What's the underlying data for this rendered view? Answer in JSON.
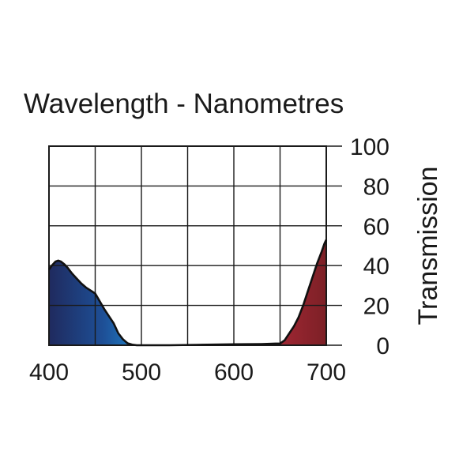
{
  "chart_data": {
    "type": "area",
    "title": "Wavelength - Nanometres",
    "xlabel": "",
    "ylabel": "Transmission",
    "xlim": [
      400,
      700
    ],
    "ylim": [
      0,
      100
    ],
    "x_ticks": [
      "400",
      "500",
      "600",
      "700"
    ],
    "y_ticks": [
      "0",
      "20",
      "40",
      "60",
      "80",
      "100"
    ],
    "grid": true,
    "y_axis_side": "right",
    "series": [
      {
        "x": [
          400,
          403,
          407,
          410,
          413,
          417,
          420,
          425,
          430,
          435,
          440,
          445,
          450,
          455,
          460,
          465,
          470,
          475,
          480,
          485,
          490,
          495,
          500,
          510,
          530,
          560,
          600,
          630,
          645,
          650,
          655,
          660,
          665,
          670,
          675,
          680,
          685,
          690,
          695,
          698,
          700
        ],
        "y": [
          38,
          40,
          42,
          42.5,
          42,
          40.5,
          39,
          36,
          33.5,
          31,
          29,
          27.5,
          26,
          22,
          18,
          14.5,
          11,
          6,
          3,
          1,
          0.3,
          0,
          0,
          0,
          0,
          0.2,
          0.5,
          0.6,
          0.8,
          0.8,
          2.5,
          6,
          9.5,
          14,
          20,
          27,
          34,
          41,
          47,
          51,
          53
        ]
      }
    ],
    "colors": {
      "blue_region": [
        "#1f2a5e",
        "#1e4f96",
        "#1e8ad0",
        "#38bfea"
      ],
      "red_region": [
        "#d72e4a",
        "#ad2938",
        "#7c2026"
      ],
      "curve": "#111111",
      "grid": "#1a1a1a"
    }
  }
}
